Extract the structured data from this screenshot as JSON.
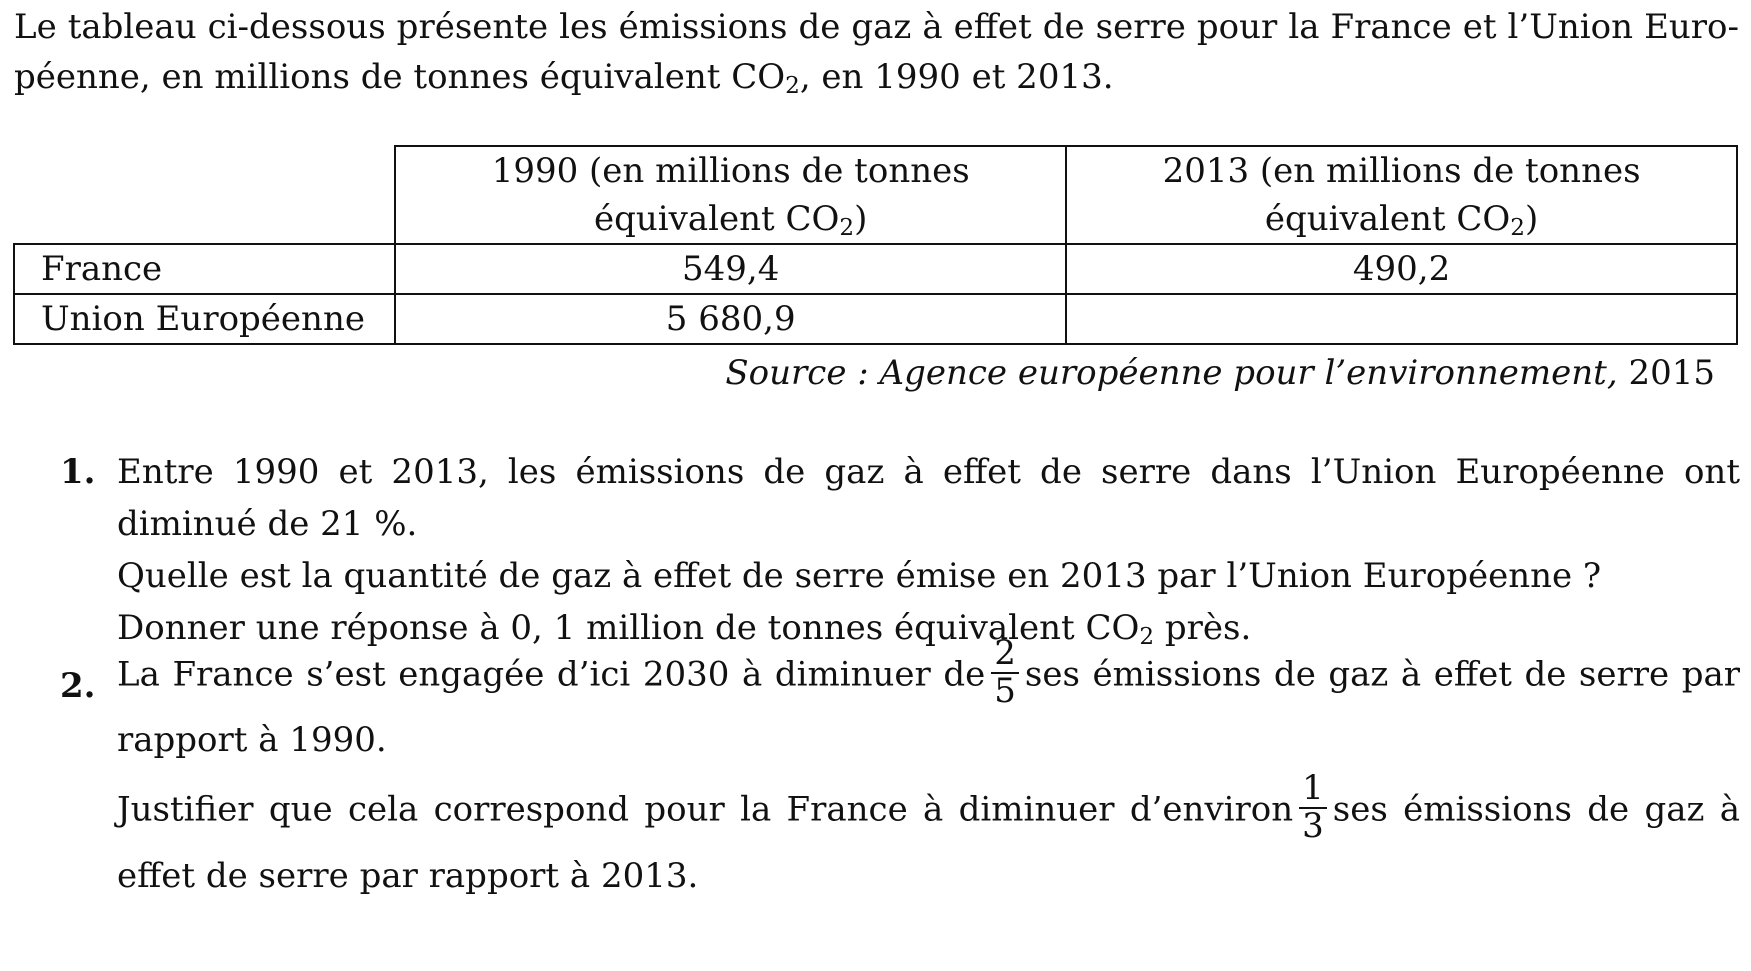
{
  "intro": {
    "text_before": "Le tableau ci-dessous présente les émissions de gaz à effet de serre pour la France et l’Union Euro-péenne, en millions de tonnes équivalent CO",
    "subscript": "2",
    "text_after": ", en 1990 et 2013."
  },
  "table": {
    "headers": [
      {
        "text": "1990 (en millions de tonnes équivalent CO",
        "sub": "2",
        "after": ")"
      },
      {
        "text": "2013 (en millions de tonnes équivalent CO",
        "sub": "2",
        "after": ")"
      }
    ],
    "rows": [
      {
        "label": "France",
        "v1990": "549,4",
        "v2013": "490,2"
      },
      {
        "label": "Union Européenne",
        "v1990": "5 680,9",
        "v2013": ""
      }
    ]
  },
  "source": {
    "italic": "Source : Agence européenne pour l’environnement,",
    "year": " 2015"
  },
  "questions": [
    {
      "number": "1.",
      "p1": "Entre 1990 et 2013, les émissions de gaz à effet de serre dans l’Union Européenne ont diminué de 21 %.",
      "p2": "Quelle est la quantité de gaz à effet de serre émise en 2013 par l’Union Européenne ?",
      "p3_before": "Donner une réponse à 0, 1 million de tonnes équivalent CO",
      "p3_sub": "2",
      "p3_after": " près."
    },
    {
      "number": "2.",
      "p1_before": "La France s’est engagée d’ici 2030 à diminuer de",
      "frac1_num": "2",
      "frac1_den": "5",
      "p1_after": "ses émissions de gaz à effet de serre par rapport à 1990.",
      "p2_before": "Justifier que cela correspond pour la France à diminuer d’environ",
      "frac2_num": "1",
      "frac2_den": "3",
      "p2_after": "ses émissions de gaz à effet de serre par rapport à 2013."
    }
  ]
}
